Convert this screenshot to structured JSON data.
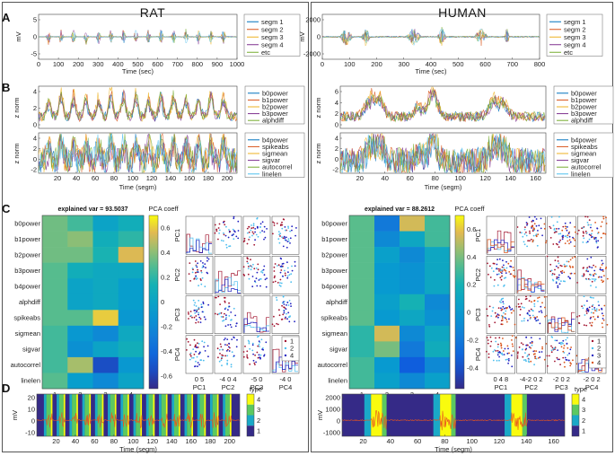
{
  "titles": {
    "rat": "RAT",
    "human": "HUMAN"
  },
  "panel_labels": [
    "A",
    "B",
    "C",
    "D"
  ],
  "colors": {
    "blue": "#0072bd",
    "orange": "#d95319",
    "yellow": "#edb120",
    "purple": "#7e2f8e",
    "green": "#77ac30",
    "cyan": "#4dbeee",
    "red": "#a2142f"
  },
  "panelA": {
    "rat": {
      "ylabel": "mV",
      "xlabel": "Time (sec)",
      "xticks": [
        "0",
        "100",
        "200",
        "300",
        "400",
        "500",
        "600",
        "700",
        "800",
        "900",
        "1000"
      ],
      "yticks": [
        "5",
        "0",
        "-5"
      ],
      "legend": [
        "segm 1",
        "segm 2",
        "segm 3",
        "segm 4",
        "etc"
      ]
    },
    "human": {
      "ylabel": "mV",
      "xlabel": "Time (sec)",
      "xticks": [
        "0",
        "100",
        "200",
        "300",
        "400",
        "500",
        "600",
        "700",
        "800"
      ],
      "yticks": [
        "2000",
        "0",
        "-2000"
      ],
      "legend": [
        "segm 1",
        "segm 2",
        "segm 3",
        "segm 4",
        "etc"
      ]
    }
  },
  "panelB": {
    "ylabel": "z norm",
    "xlabel": "Time (segm)",
    "rat": {
      "xticks": [
        "20",
        "40",
        "60",
        "80",
        "100",
        "120",
        "140",
        "160",
        "180",
        "200"
      ],
      "yticks_top": [
        "4",
        "2",
        "0"
      ],
      "yticks_bot": [
        "4",
        "2",
        "0",
        "-2"
      ]
    },
    "human": {
      "xticks": [
        "20",
        "40",
        "60",
        "80",
        "100",
        "120",
        "140",
        "160"
      ],
      "yticks_top": [
        "6",
        "4",
        "2",
        "0"
      ],
      "yticks_bot": [
        "4",
        "2",
        "0",
        "-2"
      ]
    },
    "legend_top": [
      "b0power",
      "b1power",
      "b2power",
      "b3power",
      "alphdiff"
    ],
    "legend_bot": [
      "b4power",
      "spikeabs",
      "sigmean",
      "sigvar",
      "autocorrel",
      "linelen"
    ]
  },
  "panelC": {
    "rat": {
      "title": "explained var = 93.5037",
      "colorbar_label": "PCA coeff",
      "cb_ticks": [
        "0.6",
        "0.4",
        "0.2",
        "0",
        "-0.2",
        "-0.4",
        "-0.6"
      ],
      "xlabel": "PCA component",
      "xticks": [
        "1",
        "2",
        "3",
        "4"
      ],
      "scatter_xlabels": [
        "PC1",
        "PC2",
        "PC3",
        "PC4"
      ],
      "scatter_ylabels": [
        "PC1",
        "PC2",
        "PC3",
        "PC4"
      ],
      "scatter_xticks": [
        "0 5",
        "-4 0 4",
        "-5 0",
        "-4 0"
      ],
      "legend": [
        "1",
        "2",
        "4"
      ]
    },
    "human": {
      "title": "explained var = 88.2612",
      "colorbar_label": "PCA coeff",
      "cb_ticks": [
        "0.6",
        "0.4",
        "0.2",
        "0",
        "-0.2",
        "-0.4"
      ],
      "xlabel": "PCA component",
      "xticks": [
        "1",
        "2",
        "3",
        "4"
      ],
      "scatter_xlabels": [
        "PC1",
        "PC2",
        "PC3",
        "PC4"
      ],
      "scatter_ylabels": [
        "PC1",
        "PC2",
        "PC3",
        "PC4"
      ],
      "scatter_xticks": [
        "0 4 8",
        "-4-2 0 2",
        "-2 0 2",
        "-2 0 2"
      ],
      "legend": [
        "1",
        "2",
        "3",
        "4"
      ]
    },
    "features": [
      "b0power",
      "b1power",
      "b2power",
      "b3power",
      "b4power",
      "alphdiff",
      "spikeabs",
      "sigmean",
      "sigvar",
      "autocorrel",
      "linelen"
    ],
    "rat_matrix": [
      [
        0.35,
        0.25,
        0.0,
        0.1
      ],
      [
        0.35,
        0.4,
        0.1,
        0.2
      ],
      [
        0.35,
        0.35,
        0.15,
        0.55
      ],
      [
        0.3,
        0.1,
        0.05,
        0.05
      ],
      [
        0.3,
        0.0,
        0.05,
        -0.05
      ],
      [
        0.3,
        0.0,
        0.05,
        -0.05
      ],
      [
        0.3,
        0.3,
        0.6,
        -0.1
      ],
      [
        0.25,
        -0.1,
        -0.2,
        0.05
      ],
      [
        0.25,
        -0.15,
        0.0,
        0.1
      ],
      [
        0.25,
        0.45,
        -0.55,
        -0.1
      ],
      [
        0.3,
        -0.05,
        -0.2,
        0.0
      ]
    ],
    "human_matrix": [
      [
        0.35,
        -0.2,
        0.55,
        0.3
      ],
      [
        0.35,
        -0.1,
        0.1,
        0.3
      ],
      [
        0.35,
        0.05,
        -0.1,
        0.1
      ],
      [
        0.35,
        0.0,
        -0.05,
        0.1
      ],
      [
        0.35,
        0.0,
        -0.05,
        0.1
      ],
      [
        0.35,
        0.05,
        0.2,
        -0.1
      ],
      [
        0.35,
        0.0,
        0.1,
        -0.05
      ],
      [
        0.25,
        0.55,
        -0.1,
        0.1
      ],
      [
        0.25,
        0.4,
        -0.2,
        0.15
      ],
      [
        0.3,
        0.0,
        -0.35,
        -0.1
      ],
      [
        0.3,
        0.05,
        -0.1,
        0.05
      ]
    ]
  },
  "panelD": {
    "ylabel": "mV",
    "xlabel": "Time (segm)",
    "legend_title": "type",
    "rat": {
      "xticks": [
        "20",
        "40",
        "60",
        "80",
        "100",
        "120",
        "140",
        "160",
        "180",
        "200"
      ],
      "yticks": [
        "20",
        "10",
        "0",
        "-10"
      ],
      "cb_ticks": [
        "4",
        "3",
        "2",
        "1"
      ]
    },
    "human": {
      "xticks": [
        "20",
        "40",
        "60",
        "80",
        "100",
        "120",
        "140",
        "160"
      ],
      "yticks": [
        "2000",
        "1000",
        "0",
        "-1000"
      ],
      "cb_ticks": [
        "4",
        "3",
        "2",
        "1"
      ]
    }
  }
}
